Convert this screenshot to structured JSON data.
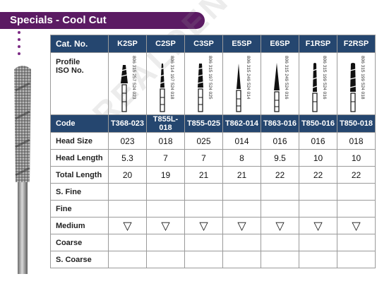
{
  "banner": {
    "title": "Specials - Cool Cut"
  },
  "watermark": "REALDENT",
  "table": {
    "header_label": "Cat. No.",
    "columns": [
      "K2SP",
      "C2SP",
      "C3SP",
      "E5SP",
      "E6SP",
      "F1RSP",
      "F2RSP"
    ],
    "profile_label_line1": "Profile",
    "profile_label_line2": "ISO No.",
    "iso_numbers": [
      "806 315 257 524 023",
      "806 314 197 524 018",
      "806 315 197 524 025",
      "806 315 249 524 014",
      "806 315 249 524 016",
      "806 315 199 524 016",
      "806 315 199 524 018"
    ],
    "code_label": "Code",
    "codes": [
      "T368-023",
      "T855L-018",
      "T855-025",
      "T862-014",
      "T863-016",
      "T850-016",
      "T850-018"
    ],
    "rows": [
      {
        "label": "Head Size",
        "values": [
          "023",
          "018",
          "025",
          "014",
          "016",
          "016",
          "018"
        ]
      },
      {
        "label": "Head Length",
        "values": [
          "5.3",
          "7",
          "7",
          "8",
          "9.5",
          "10",
          "10"
        ]
      },
      {
        "label": "Total Length",
        "values": [
          "20",
          "19",
          "21",
          "21",
          "22",
          "22",
          "22"
        ]
      },
      {
        "label": "S. Fine",
        "values": [
          "",
          "",
          "",
          "",
          "",
          "",
          ""
        ]
      },
      {
        "label": "Fine",
        "values": [
          "",
          "",
          "",
          "",
          "",
          "",
          ""
        ]
      },
      {
        "label": "Medium",
        "values": [
          "",
          "",
          "",
          "",
          "",
          "",
          ""
        ],
        "icons": [
          "diamond-icon",
          "diamond-icon",
          "diamond-icon",
          "diamond-icon",
          "diamond-icon",
          "diamond-icon",
          "diamond-icon"
        ]
      },
      {
        "label": "Coarse",
        "values": [
          "",
          "",
          "",
          "",
          "",
          "",
          ""
        ]
      },
      {
        "label": "S. Coarse",
        "values": [
          "",
          "",
          "",
          "",
          "",
          "",
          ""
        ]
      }
    ]
  },
  "colors": {
    "banner": "#5b1b63",
    "header": "#25466f",
    "grid": "#9a9a9a"
  }
}
